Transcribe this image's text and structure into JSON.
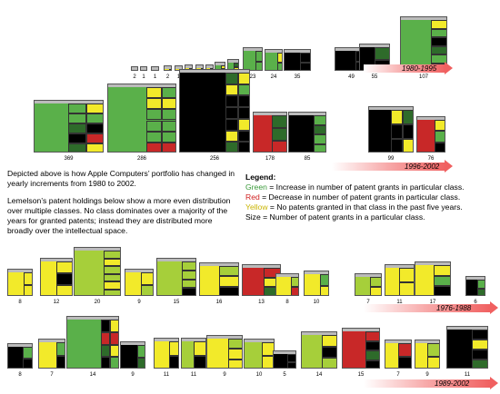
{
  "colors": {
    "green": "#5ab04a",
    "dkgreen": "#2e6b2a",
    "red": "#c82828",
    "yellow": "#f2ea2a",
    "black": "#000000",
    "ltgreen": "#a6cf3a"
  },
  "apple_top": {
    "counts": [
      "2",
      "1",
      "1",
      "2",
      "1",
      "3",
      "3",
      "3",
      "6",
      "7",
      "23",
      "24",
      "35",
      "49",
      "55",
      "107"
    ],
    "range_label": "1980-1995"
  },
  "apple_mid": {
    "counts": [
      "369",
      "286",
      "256",
      "178",
      "85",
      "99",
      "76"
    ],
    "range_label": "1996-2002"
  },
  "description": {
    "p1": "Depicted above is how Apple Computers’ portfolio has changed in yearly increments from 1980 to 2002.",
    "p2": "Lemelson’s patent holdings below show a more even distribution over multiple classes.  No class dominates over a majority of the years for granted patents; instead they are distributed more broadly over the intellectual space."
  },
  "legend": {
    "title": "Legend:",
    "green_word": "Green",
    "green_rest": " = Increase in number of patent grants in particular class.",
    "red_word": "Red",
    "red_rest": " = Decrease in number of patent grants in particular class.",
    "yellow_word": "Yellow",
    "yellow_rest": " = No patents granted in that class in the past five years.",
    "size_line": "Size = Number of patent grants in a particular class."
  },
  "lemelson_a": {
    "counts": [
      "8",
      "12",
      "20",
      "9",
      "15",
      "16",
      "13",
      "8",
      "10",
      "7",
      "11",
      "17",
      "6"
    ],
    "range_label": "1976-1988"
  },
  "lemelson_b": {
    "counts": [
      "8",
      "7",
      "14",
      "9",
      "11",
      "11",
      "9",
      "10",
      "5",
      "14",
      "15",
      "7",
      "9",
      "11"
    ],
    "range_label": "1989-2002"
  }
}
